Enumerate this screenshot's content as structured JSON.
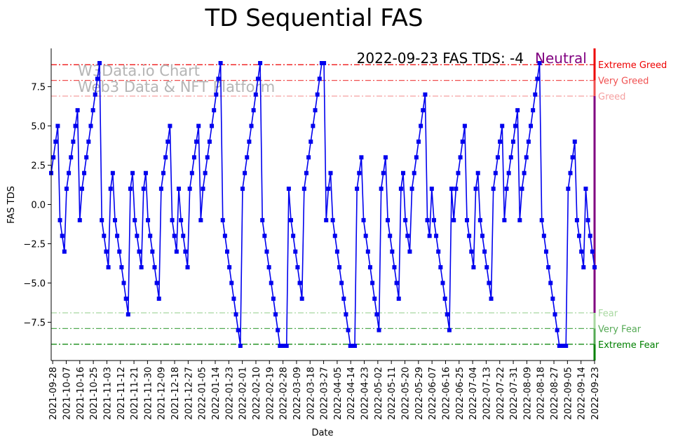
{
  "colors": {
    "series": "#0000ee",
    "extreme_greed": "#ee0000",
    "very_greed": "#f05050",
    "greed": "#f5a0a0",
    "fear": "#a8d8a0",
    "very_fear": "#55aa55",
    "extreme_fear": "#008000",
    "neutral": "#800080",
    "watermark": "#b5b5b5"
  },
  "chart_data": {
    "type": "line",
    "title": "TD Sequential FAS",
    "xlabel": "Date",
    "ylabel": "FAS TDS",
    "ylim": [
      -9.6,
      9.8
    ],
    "yticks": [
      -7.5,
      -5.0,
      -2.5,
      0.0,
      2.5,
      5.0,
      7.5
    ],
    "ytick_labels": [
      "−7.5",
      "−5.0",
      "−2.5",
      "0.0",
      "2.5",
      "5.0",
      "7.5"
    ],
    "start_date": "2021-09-27",
    "x_tick_labels": [
      "2021-09-28",
      "2021-10-07",
      "2021-10-16",
      "2021-10-25",
      "2021-11-03",
      "2021-11-12",
      "2021-11-21",
      "2021-11-30",
      "2021-12-09",
      "2021-12-18",
      "2021-12-27",
      "2022-01-05",
      "2022-01-14",
      "2022-01-23",
      "2022-02-01",
      "2022-02-10",
      "2022-02-19",
      "2022-02-28",
      "2022-03-09",
      "2022-03-18",
      "2022-03-27",
      "2022-04-05",
      "2022-04-14",
      "2022-04-23",
      "2022-05-02",
      "2022-05-11",
      "2022-05-20",
      "2022-05-29",
      "2022-06-07",
      "2022-06-16",
      "2022-06-25",
      "2022-07-04",
      "2022-07-13",
      "2022-07-22",
      "2022-07-31",
      "2022-08-09",
      "2022-08-18",
      "2022-08-27",
      "2022-09-05",
      "2022-09-14",
      "2022-09-23"
    ],
    "x_tick_first_day": 1,
    "x_tick_step_days": 9,
    "x_range_days": [
      0,
      361
    ],
    "series": [
      {
        "name": "FAS TDS",
        "marker": "square",
        "values": [
          2,
          3,
          4,
          5,
          -1,
          -2,
          -3,
          1,
          2,
          3,
          4,
          5,
          6,
          -1,
          1,
          2,
          3,
          4,
          5,
          6,
          7,
          8,
          9,
          -1,
          -2,
          -3,
          -4,
          1,
          2,
          -1,
          -2,
          -3,
          -4,
          -5,
          -6,
          -7,
          1,
          2,
          -1,
          -2,
          -3,
          -4,
          1,
          2,
          -1,
          -2,
          -3,
          -4,
          -5,
          -6,
          1,
          2,
          3,
          4,
          5,
          -1,
          -2,
          -3,
          1,
          -1,
          -2,
          -3,
          -4,
          1,
          2,
          3,
          4,
          5,
          -1,
          1,
          2,
          3,
          4,
          5,
          6,
          7,
          8,
          9,
          -1,
          -2,
          -3,
          -4,
          -5,
          -6,
          -7,
          -8,
          -9,
          1,
          2,
          3,
          4,
          5,
          6,
          7,
          8,
          9,
          -1,
          -2,
          -3,
          -4,
          -5,
          -6,
          -7,
          -8,
          -9,
          -9,
          -9,
          -9,
          1,
          -1,
          -2,
          -3,
          -4,
          -5,
          -6,
          1,
          2,
          3,
          4,
          5,
          6,
          7,
          8,
          9,
          9,
          -1,
          1,
          2,
          -1,
          -2,
          -3,
          -4,
          -5,
          -6,
          -7,
          -8,
          -9,
          -9,
          -9,
          1,
          2,
          3,
          -1,
          -2,
          -3,
          -4,
          -5,
          -6,
          -7,
          -8,
          1,
          2,
          3,
          -1,
          -2,
          -3,
          -4,
          -5,
          -6,
          1,
          2,
          -1,
          -2,
          -3,
          1,
          2,
          3,
          4,
          5,
          6,
          7,
          -1,
          -2,
          1,
          -1,
          -2,
          -3,
          -4,
          -5,
          -6,
          -7,
          -8,
          1,
          -1,
          1,
          2,
          3,
          4,
          5,
          -1,
          -2,
          -3,
          -4,
          1,
          2,
          -1,
          -2,
          -3,
          -4,
          -5,
          -6,
          1,
          2,
          3,
          4,
          5,
          -1,
          1,
          2,
          3,
          4,
          5,
          6,
          -1,
          1,
          2,
          3,
          4,
          5,
          6,
          7,
          8,
          9,
          -1,
          -2,
          -3,
          -4,
          -5,
          -6,
          -7,
          -8,
          -9,
          -9,
          -9,
          -9,
          1,
          2,
          3,
          4,
          -1,
          -2,
          -3,
          -4,
          1,
          -1,
          -2,
          -3,
          -4
        ]
      }
    ],
    "bands": [
      {
        "key": "extreme_greed",
        "label": "Extreme Greed",
        "value": 8.9,
        "style": "dashdot"
      },
      {
        "key": "very_greed",
        "label": "Very Greed",
        "value": 7.9,
        "style": "dashdot"
      },
      {
        "key": "greed",
        "label": "Greed",
        "value": 6.9,
        "style": "dashdot"
      },
      {
        "key": "fear",
        "label": "Fear",
        "value": -6.9,
        "style": "dashdot"
      },
      {
        "key": "very_fear",
        "label": "Very Fear",
        "value": -7.9,
        "style": "dashdot"
      },
      {
        "key": "extreme_fear",
        "label": "Extreme Fear",
        "value": -8.9,
        "style": "dashdot"
      }
    ],
    "annotation": {
      "text": "2022-09-23 FAS TDS: -4",
      "status": "Neutral"
    },
    "watermark": [
      "W3Data.io Chart",
      "Web3 Data & NFT Platform"
    ]
  }
}
